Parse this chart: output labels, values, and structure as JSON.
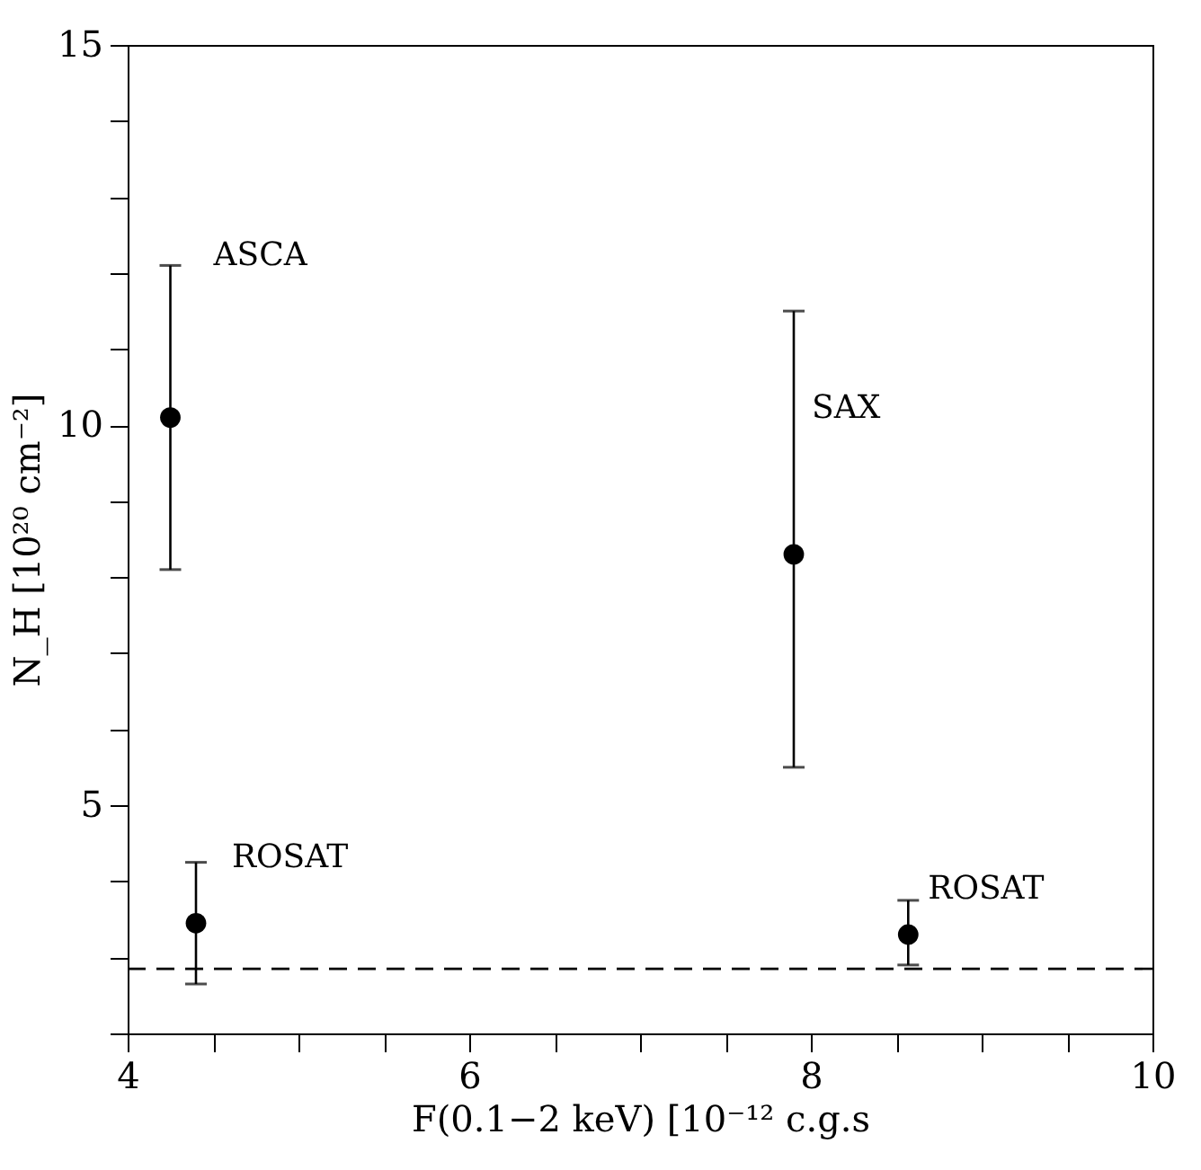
{
  "chart_data": {
    "type": "scatter",
    "xlabel": "F(0.1−2 keV) [10⁻¹² c.g.s",
    "ylabel": "N_H [10²⁰ cm⁻²]",
    "x": [
      4.25,
      4.4,
      7.9,
      8.57
    ],
    "series": [
      {
        "color": "#000000",
        "values": [
          10.1,
          3.45,
          8.3,
          3.3
        ],
        "errors": [
          [
            8.1,
            12.1
          ],
          [
            2.65,
            4.25
          ],
          [
            5.5,
            11.5
          ],
          [
            2.9,
            3.75
          ]
        ]
      }
    ],
    "marker": "circle",
    "xlim": [
      4,
      10
    ],
    "ylim": [
      2,
      15
    ],
    "xticks": [
      4,
      {
        "value": 4.5,
        "label": null
      },
      {
        "value": 5,
        "label": null
      },
      {
        "value": 5.5,
        "label": null
      },
      6,
      {
        "value": 6.5,
        "label": null
      },
      {
        "value": 7,
        "label": null
      },
      {
        "value": 7.5,
        "label": null
      },
      8,
      {
        "value": 8.5,
        "label": null
      },
      {
        "value": 9,
        "label": null
      },
      {
        "value": 9.5,
        "label": null
      },
      10
    ],
    "yticks": [
      {
        "value": 2,
        "label": null
      },
      {
        "value": 3,
        "label": null
      },
      {
        "value": 4,
        "label": null
      },
      5,
      {
        "value": 6,
        "label": null
      },
      {
        "value": 7,
        "label": null
      },
      {
        "value": 8,
        "label": null
      },
      {
        "value": 9,
        "label": null
      },
      10,
      {
        "value": 11,
        "label": null
      },
      {
        "value": 12,
        "label": null
      },
      {
        "value": 13,
        "label": null
      },
      {
        "value": 14,
        "label": null
      },
      15
    ],
    "ref_lines": [
      {
        "axis": "y",
        "value": 2.85,
        "line_style": "dashed",
        "color": "#000000"
      }
    ],
    "annotations": [
      "ASCA",
      "ROSAT",
      "SAX",
      "ROSAT"
    ]
  }
}
